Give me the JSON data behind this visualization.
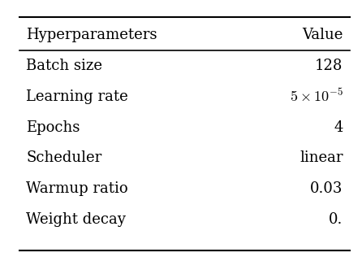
{
  "title_col1": "Hyperparameters",
  "title_col2": "Value",
  "rows": [
    [
      "Batch size",
      "128"
    ],
    [
      "Learning rate",
      "$5 \\times 10^{-5}$"
    ],
    [
      "Epochs",
      "4"
    ],
    [
      "Scheduler",
      "linear"
    ],
    [
      "Warmup ratio",
      "0.03"
    ],
    [
      "Weight decay",
      "0."
    ]
  ],
  "bg_color": "#ffffff",
  "text_color": "#000000",
  "font_size": 13,
  "header_font_size": 13
}
